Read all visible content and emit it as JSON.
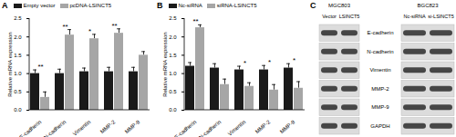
{
  "chart_data": [
    {
      "type": "bar",
      "title": "A",
      "categories": [
        "E-cadherin",
        "N-cadherin",
        "Vimentin",
        "MMP-2",
        "MMP-9"
      ],
      "ylabel": "Relative mRNA expression",
      "series": [
        {
          "name": "Empty vector",
          "color": "#1a1a1a",
          "values": [
            1.0,
            1.0,
            1.05,
            1.05,
            1.05
          ],
          "errors": [
            0.1,
            0.12,
            0.1,
            0.12,
            0.12
          ]
        },
        {
          "name": "pcDNA-LSINCT5",
          "color": "#a6a6a6",
          "values": [
            0.35,
            2.05,
            1.95,
            2.1,
            1.5
          ],
          "errors": [
            0.15,
            0.15,
            0.12,
            0.12,
            0.1
          ]
        }
      ],
      "annotations": [
        {
          "category": "E-cadherin",
          "text": "**"
        },
        {
          "category": "N-cadherin",
          "text": "**"
        },
        {
          "category": "Vimentin",
          "text": "*"
        },
        {
          "category": "MMP-2",
          "text": "**"
        }
      ],
      "ylim": [
        0,
        2.5
      ],
      "yticks": [
        {
          "value": 0,
          "label": "0.0"
        },
        0.5,
        {
          "value": 1,
          "label": "1.0"
        },
        1.5,
        {
          "value": 2,
          "label": "2.0"
        },
        2.5
      ],
      "legend": "top"
    },
    {
      "type": "bar",
      "title": "B",
      "categories": [
        "E-cadherin",
        "N-cadherin",
        "Vimentin",
        "MMP-2",
        "MMP-9"
      ],
      "ylabel": "Relative mRNA expression",
      "series": [
        {
          "name": "Nc-siRNA",
          "color": "#1a1a1a",
          "values": [
            1.2,
            1.15,
            1.1,
            1.1,
            1.15
          ],
          "errors": [
            0.1,
            0.12,
            0.1,
            0.12,
            0.12
          ]
        },
        {
          "name": "siRNA-LSINCT5",
          "color": "#a6a6a6",
          "values": [
            2.25,
            0.7,
            0.65,
            0.55,
            0.6
          ],
          "errors": [
            0.08,
            0.15,
            0.1,
            0.15,
            0.18
          ]
        }
      ],
      "annotations": [
        {
          "category": "E-cadherin",
          "text": "**"
        },
        {
          "category": "Vimentin",
          "text": "*"
        },
        {
          "category": "MMP-2",
          "text": "*"
        },
        {
          "category": "MMP-9",
          "text": "*"
        }
      ],
      "ylim": [
        0,
        2.5
      ],
      "yticks": [
        {
          "value": 0,
          "label": "0.0"
        },
        0.5,
        {
          "value": 1,
          "label": "1.0"
        },
        1.5,
        {
          "value": 2,
          "label": "2.0"
        },
        2.5
      ],
      "legend": "top"
    }
  ],
  "blot": {
    "title": "C",
    "blots": [
      {
        "cell_line": "MGC803",
        "lanes": [
          "Vector",
          "LSINCT5"
        ]
      },
      {
        "cell_line": "BGC823",
        "lanes": [
          "Nc-siRNA",
          "si-LSINCT5"
        ]
      }
    ],
    "rows": [
      "E-cadherin",
      "N-cadherin",
      "Vimentin",
      "MMP-2",
      "MMP-9",
      "GAPDH"
    ]
  }
}
